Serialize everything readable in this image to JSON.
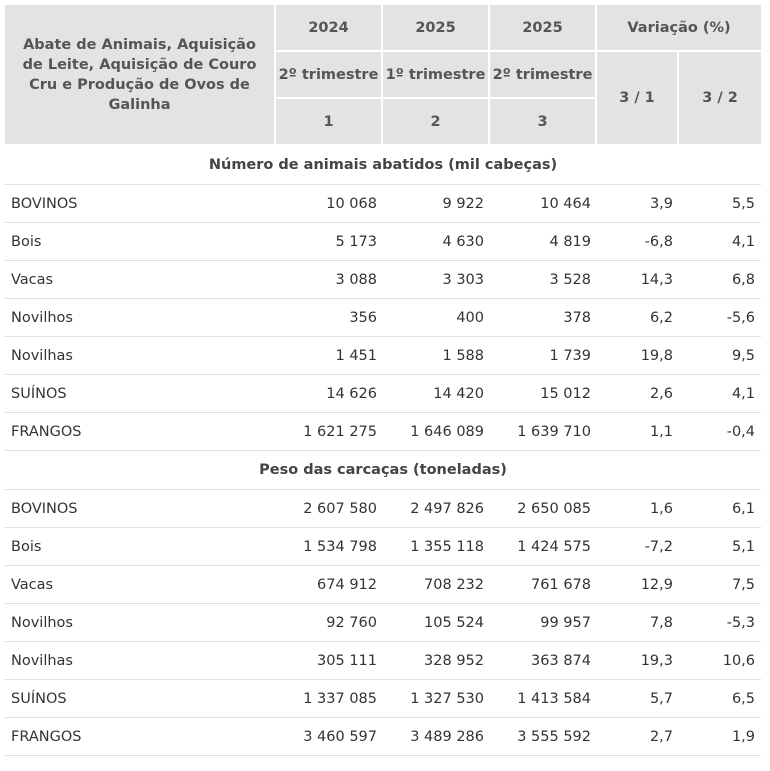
{
  "table": {
    "corner_header": "Abate de Animais, Aquisição de Leite, Aquisição de Couro Cru e Produção de Ovos de Galinha",
    "year_headers": [
      "2024",
      "2025",
      "2025"
    ],
    "variation_header": "Variação (%)",
    "period_headers": [
      "2º trimestre",
      "1º trimestre",
      "2º trimestre"
    ],
    "index_headers": [
      "1",
      "2",
      "3"
    ],
    "variation_cols": [
      "3 / 1",
      "3 / 2"
    ],
    "sections": [
      {
        "title": "Número de animais abatidos (mil cabeças)",
        "rows": [
          {
            "label": "BOVINOS",
            "v1": "10 068",
            "v2": "9 922",
            "v3": "10 464",
            "var1": "3,9",
            "var2": "5,5"
          },
          {
            "label": "Bois",
            "v1": "5 173",
            "v2": "4 630",
            "v3": "4 819",
            "var1": "-6,8",
            "var2": "4,1"
          },
          {
            "label": "Vacas",
            "v1": "3 088",
            "v2": "3 303",
            "v3": "3 528",
            "var1": "14,3",
            "var2": "6,8"
          },
          {
            "label": "Novilhos",
            "v1": "356",
            "v2": "400",
            "v3": "378",
            "var1": "6,2",
            "var2": "-5,6"
          },
          {
            "label": "Novilhas",
            "v1": "1 451",
            "v2": "1 588",
            "v3": "1 739",
            "var1": "19,8",
            "var2": "9,5"
          },
          {
            "label": "SUÍNOS",
            "v1": "14 626",
            "v2": "14 420",
            "v3": "15 012",
            "var1": "2,6",
            "var2": "4,1"
          },
          {
            "label": "FRANGOS",
            "v1": "1 621 275",
            "v2": "1 646 089",
            "v3": "1 639 710",
            "var1": "1,1",
            "var2": "-0,4"
          }
        ]
      },
      {
        "title": "Peso das carcaças (toneladas)",
        "rows": [
          {
            "label": "BOVINOS",
            "v1": "2 607 580",
            "v2": "2 497 826",
            "v3": "2 650 085",
            "var1": "1,6",
            "var2": "6,1"
          },
          {
            "label": "Bois",
            "v1": "1 534 798",
            "v2": "1 355 118",
            "v3": "1 424 575",
            "var1": "-7,2",
            "var2": "5,1"
          },
          {
            "label": "Vacas",
            "v1": "674 912",
            "v2": "708 232",
            "v3": "761 678",
            "var1": "12,9",
            "var2": "7,5"
          },
          {
            "label": "Novilhos",
            "v1": "92 760",
            "v2": "105 524",
            "v3": "99 957",
            "var1": "7,8",
            "var2": "-5,3"
          },
          {
            "label": "Novilhas",
            "v1": "305 111",
            "v2": "328 952",
            "v3": "363 874",
            "var1": "19,3",
            "var2": "10,6"
          },
          {
            "label": "SUÍNOS",
            "v1": "1 337 085",
            "v2": "1 327 530",
            "v3": "1 413 584",
            "var1": "5,7",
            "var2": "6,5"
          },
          {
            "label": "FRANGOS",
            "v1": "3 460 597",
            "v2": "3 489 286",
            "v3": "3 555 592",
            "var1": "2,7",
            "var2": "1,9"
          }
        ]
      }
    ]
  }
}
